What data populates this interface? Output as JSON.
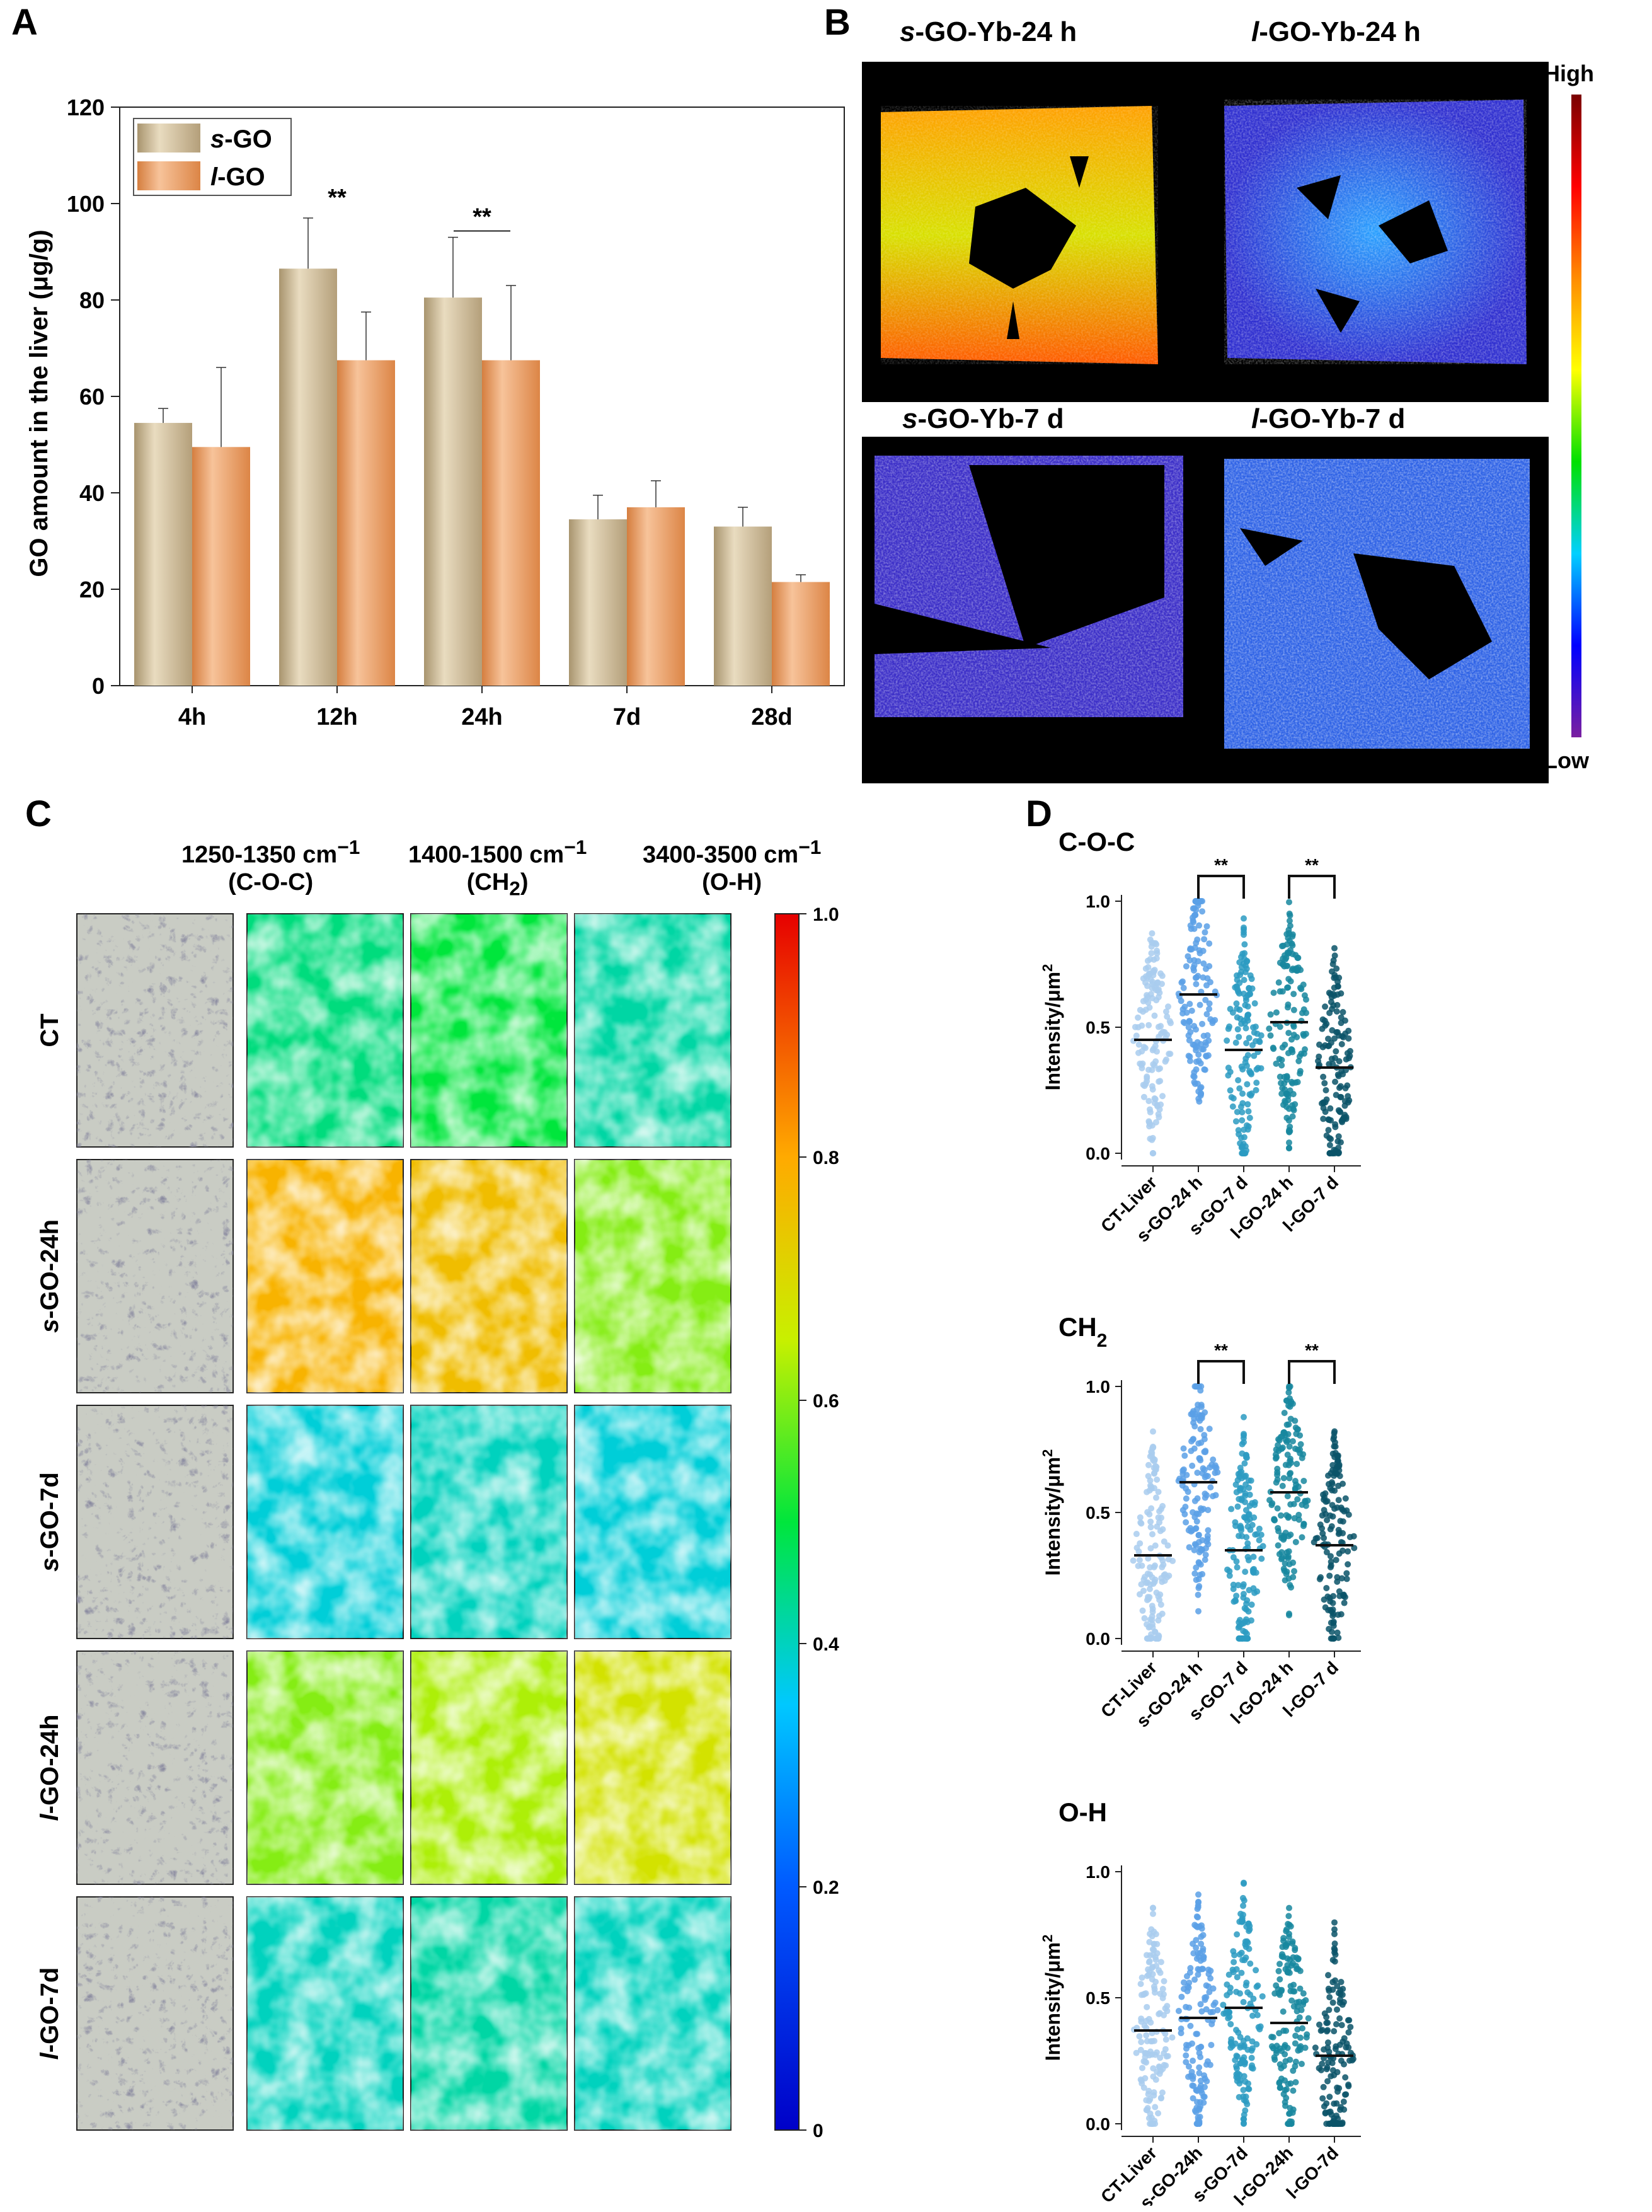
{
  "panels": {
    "a": "A",
    "b": "B",
    "c": "C",
    "d": "D"
  },
  "chart_data": [
    {
      "type": "bar",
      "panel": "A",
      "categories": [
        "4h",
        "12h",
        "24h",
        "7d",
        "28d"
      ],
      "series": [
        {
          "name": "s-GO",
          "prefix": "s",
          "suffix": "-GO",
          "color": "#c9b48f",
          "values": [
            54.5,
            86.5,
            80.5,
            34.5,
            33
          ],
          "errors": [
            3,
            10.5,
            12.5,
            5,
            4
          ]
        },
        {
          "name": "l-GO",
          "prefix": "l",
          "suffix": "-GO",
          "color": "#e8995f",
          "values": [
            49.5,
            67.5,
            67.5,
            37,
            21.5
          ],
          "errors": [
            16.5,
            10,
            15.5,
            5.5,
            1.5
          ]
        }
      ],
      "significance": [
        {
          "category": "12h",
          "label": "**"
        },
        {
          "category": "24h",
          "label": "**"
        }
      ],
      "ylabel": "GO amount in the liver (μg/g)",
      "ylim": [
        0,
        120
      ],
      "yticks": [
        0,
        20,
        40,
        60,
        80,
        100,
        120
      ]
    },
    {
      "type": "heatmap-images",
      "panel": "B",
      "titles": [
        {
          "prefix": "s",
          "rest": "-GO-Yb-24 h"
        },
        {
          "prefix": "l",
          "rest": "-GO-Yb-24 h"
        },
        {
          "prefix": "s",
          "rest": "-GO-Yb-7 d"
        },
        {
          "prefix": "l",
          "rest": "-GO-Yb-7 d"
        }
      ],
      "colorbar": {
        "high": "High",
        "low": "Low"
      }
    },
    {
      "type": "heatmap",
      "panel": "C",
      "columns": [
        {
          "range": "1250-1350 cm",
          "sup": "−1",
          "group": "(C-O-C)"
        },
        {
          "range": "1400-1500 cm",
          "sup": "−1",
          "group": "(CH",
          "group_sub": "2",
          "group_end": ")"
        },
        {
          "range": "3400-3500 cm",
          "sup": "−1",
          "group": "(O-H)"
        }
      ],
      "rows": [
        {
          "prefix": "",
          "rest": "CT",
          "intensity": [
            0.45,
            0.5,
            0.42
          ]
        },
        {
          "prefix": "s",
          "rest": "-GO-24h",
          "intensity": [
            0.78,
            0.76,
            0.6
          ]
        },
        {
          "prefix": "s",
          "rest": "-GO-7d",
          "intensity": [
            0.38,
            0.4,
            0.38
          ]
        },
        {
          "prefix": "l",
          "rest": "-GO-24h",
          "intensity": [
            0.6,
            0.63,
            0.68
          ]
        },
        {
          "prefix": "l",
          "rest": "-GO-7d",
          "intensity": [
            0.4,
            0.42,
            0.4
          ]
        }
      ],
      "colorbar_ticks": [
        "0",
        "0.2",
        "0.4",
        "0.6",
        "0.8",
        "1.0"
      ],
      "colorbar_values": [
        0,
        0.2,
        0.4,
        0.6,
        0.8,
        1.0
      ]
    },
    {
      "type": "scatter",
      "panel": "D",
      "title": "C-O-C",
      "ylabel": "Intensity/μm",
      "ylabel_sup": "2",
      "ylim": [
        0,
        1
      ],
      "yticks": [
        "0.0",
        "0.5",
        "1.0"
      ],
      "categories": [
        "CT-Liver",
        "s-GO-24 h",
        "s-GO-7 d",
        "l-GO-24 h",
        "l-GO-7 d"
      ],
      "medians": [
        0.45,
        0.63,
        0.41,
        0.52,
        0.34
      ],
      "colors": [
        "#a9cdef",
        "#5aa0e6",
        "#2b9bc2",
        "#17879f",
        "#0b5369"
      ],
      "significance": [
        {
          "between": [
            1,
            2
          ],
          "label": "**"
        },
        {
          "between": [
            3,
            4
          ],
          "label": "**"
        }
      ]
    },
    {
      "type": "scatter",
      "panel": "D",
      "title": "CH",
      "title_sub": "2",
      "ylabel": "Intensity/μm",
      "ylabel_sup": "2",
      "ylim": [
        0,
        1
      ],
      "yticks": [
        "0.0",
        "0.5",
        "1.0"
      ],
      "categories": [
        "CT-Liver",
        "s-GO-24 h",
        "s-GO-7 d",
        "l-GO-24 h",
        "l-GO-7 d"
      ],
      "medians": [
        0.33,
        0.62,
        0.35,
        0.58,
        0.37
      ],
      "colors": [
        "#a9cdef",
        "#5aa0e6",
        "#2b9bc2",
        "#17879f",
        "#0b5369"
      ],
      "significance": [
        {
          "between": [
            1,
            2
          ],
          "label": "**"
        },
        {
          "between": [
            3,
            4
          ],
          "label": "**"
        }
      ]
    },
    {
      "type": "scatter",
      "panel": "D",
      "title": "O-H",
      "ylabel": "Intensity/μm",
      "ylabel_sup": "2",
      "ylim": [
        0,
        1
      ],
      "yticks": [
        "0.0",
        "0.5",
        "1.0"
      ],
      "categories": [
        "CT-Liver",
        "s-GO-24h",
        "s-GO-7d",
        "l-GO-24h",
        "l-GO-7d"
      ],
      "medians": [
        0.37,
        0.42,
        0.46,
        0.4,
        0.27
      ],
      "colors": [
        "#a9cdef",
        "#5aa0e6",
        "#2b9bc2",
        "#17879f",
        "#0b5369"
      ],
      "significance": []
    }
  ]
}
